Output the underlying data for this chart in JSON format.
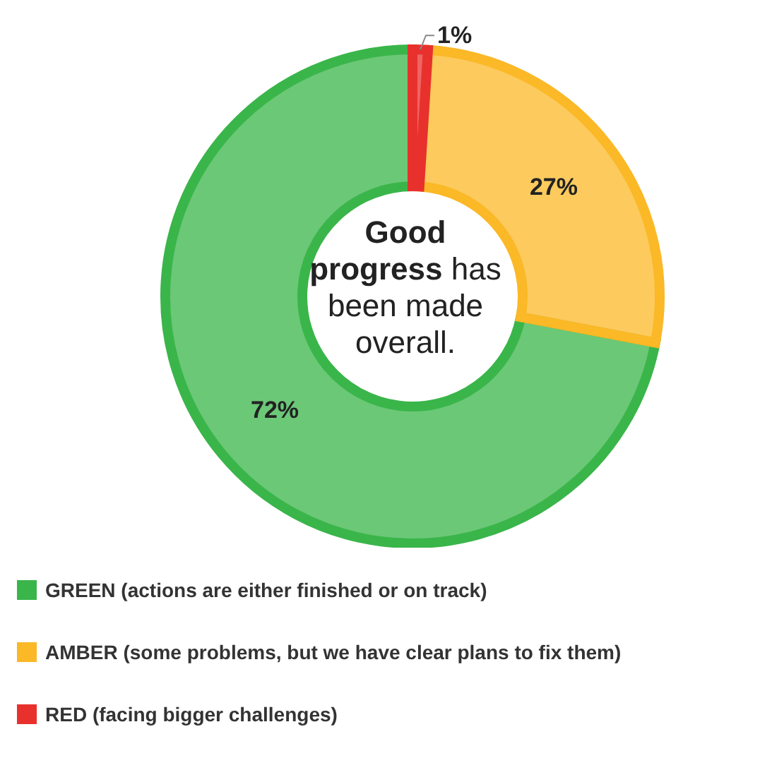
{
  "chart_data": {
    "type": "donut",
    "categories": [
      "GREEN (actions are either finished or on track)",
      "AMBER (some problems, but we have clear plans to fix them)",
      "RED (facing bigger challenges)"
    ],
    "values": [
      72,
      27,
      1
    ],
    "colors": [
      "#3ab54a",
      "#fbb827",
      "#e8312d"
    ],
    "value_labels": [
      "72%",
      "27%",
      "1%"
    ],
    "annotations": [
      "Good progress has been made overall."
    ],
    "legend": "bottom"
  }
}
